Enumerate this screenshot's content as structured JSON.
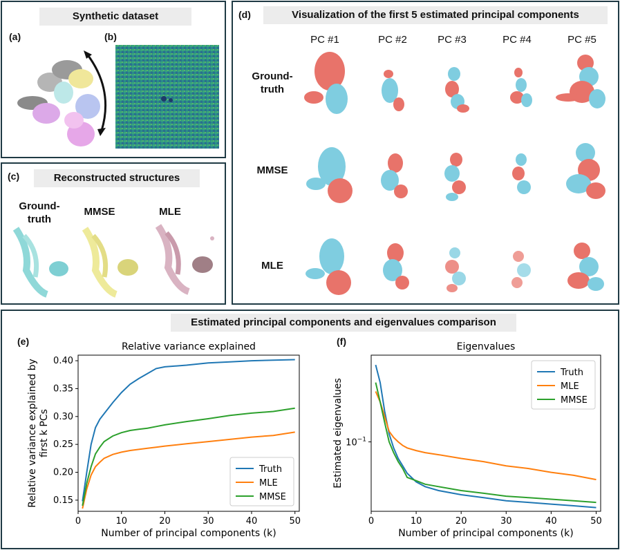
{
  "panel_a": {
    "title": "Synthetic dataset",
    "label_a": "(a)",
    "label_b": "(b)"
  },
  "panel_c": {
    "title": "Reconstructed structures",
    "label": "(c)",
    "columns": [
      "Ground-\ntruth",
      "MMSE",
      "MLE"
    ]
  },
  "panel_d": {
    "title": "Visualization of the first 5 estimated principal components",
    "label": "(d)",
    "columns": [
      "PC #1",
      "PC #2",
      "PC #3",
      "PC #4",
      "PC #5"
    ],
    "rows": [
      "Ground-\ntruth",
      "MMSE",
      "MLE"
    ]
  },
  "bottom": {
    "title": "Estimated principal components and eigenvalues comparison",
    "label_e": "(e)",
    "label_f": "(f)"
  },
  "colors": {
    "truth": "#1f77b4",
    "mle": "#ff7f0e",
    "mmse": "#2ca02c",
    "blob_red": "#e8736a",
    "blob_blue": "#7fcde0"
  },
  "chart_data": [
    {
      "type": "line",
      "title": "Relative variance explained",
      "xlabel": "Number of principal components (k)",
      "ylabel": "Relative variance explained by first k PCs",
      "xlim": [
        0,
        51
      ],
      "ylim": [
        0.13,
        0.41
      ],
      "xticks": [
        0,
        10,
        20,
        30,
        40,
        50
      ],
      "yticks": [
        0.15,
        0.2,
        0.25,
        0.3,
        0.35,
        0.4
      ],
      "ytick_labels": [
        "0.15",
        "0.20",
        "0.25",
        "0.30",
        "0.35",
        "0.40"
      ],
      "legend": "bottom-right",
      "series": [
        {
          "name": "Truth",
          "x": [
            1,
            2,
            3,
            4,
            5,
            6,
            8,
            10,
            12,
            14,
            16,
            18,
            20,
            25,
            30,
            35,
            40,
            45,
            50
          ],
          "y": [
            0.148,
            0.2,
            0.25,
            0.28,
            0.295,
            0.305,
            0.325,
            0.343,
            0.358,
            0.368,
            0.377,
            0.386,
            0.389,
            0.392,
            0.396,
            0.398,
            0.4,
            0.401,
            0.402
          ]
        },
        {
          "name": "MLE",
          "x": [
            1,
            2,
            3,
            4,
            5,
            6,
            8,
            10,
            12,
            14,
            16,
            18,
            20,
            25,
            30,
            35,
            40,
            45,
            50
          ],
          "y": [
            0.135,
            0.17,
            0.195,
            0.21,
            0.218,
            0.225,
            0.232,
            0.236,
            0.239,
            0.241,
            0.243,
            0.245,
            0.247,
            0.251,
            0.255,
            0.259,
            0.263,
            0.266,
            0.272
          ]
        },
        {
          "name": "MMSE",
          "x": [
            1,
            2,
            3,
            4,
            5,
            6,
            8,
            10,
            12,
            14,
            16,
            18,
            20,
            25,
            30,
            35,
            40,
            45,
            50
          ],
          "y": [
            0.14,
            0.18,
            0.21,
            0.233,
            0.245,
            0.255,
            0.265,
            0.271,
            0.275,
            0.277,
            0.279,
            0.282,
            0.285,
            0.291,
            0.296,
            0.302,
            0.306,
            0.309,
            0.315
          ]
        }
      ]
    },
    {
      "type": "line",
      "title": "Eigenvalues",
      "xlabel": "Number of principal components (k)",
      "ylabel": "Estimated eigenvalues",
      "xlim": [
        0,
        51
      ],
      "yscale": "log",
      "ylim": [
        0.03,
        0.45
      ],
      "xticks": [
        0,
        10,
        20,
        30,
        40,
        50
      ],
      "ytick_label": "10^{-1}",
      "ytick_value": 0.1,
      "legend": "top-right",
      "series": [
        {
          "name": "Truth",
          "x": [
            1,
            2,
            3,
            4,
            5,
            6,
            7,
            8,
            10,
            12,
            15,
            20,
            25,
            30,
            35,
            40,
            45,
            50
          ],
          "y": [
            0.38,
            0.28,
            0.17,
            0.115,
            0.09,
            0.075,
            0.066,
            0.058,
            0.05,
            0.046,
            0.043,
            0.04,
            0.038,
            0.036,
            0.035,
            0.034,
            0.033,
            0.032
          ]
        },
        {
          "name": "MLE",
          "x": [
            1,
            2,
            3,
            4,
            5,
            6,
            7,
            8,
            10,
            12,
            15,
            20,
            25,
            30,
            35,
            40,
            45,
            50
          ],
          "y": [
            0.24,
            0.2,
            0.155,
            0.12,
            0.108,
            0.1,
            0.094,
            0.09,
            0.086,
            0.083,
            0.08,
            0.075,
            0.071,
            0.066,
            0.063,
            0.059,
            0.056,
            0.052
          ]
        },
        {
          "name": "MMSE",
          "x": [
            1,
            2,
            3,
            4,
            5,
            6,
            7,
            8,
            10,
            12,
            15,
            20,
            25,
            30,
            35,
            40,
            45,
            50
          ],
          "y": [
            0.28,
            0.2,
            0.14,
            0.1,
            0.083,
            0.071,
            0.063,
            0.054,
            0.051,
            0.048,
            0.046,
            0.043,
            0.041,
            0.039,
            0.038,
            0.037,
            0.036,
            0.035
          ]
        }
      ]
    }
  ]
}
